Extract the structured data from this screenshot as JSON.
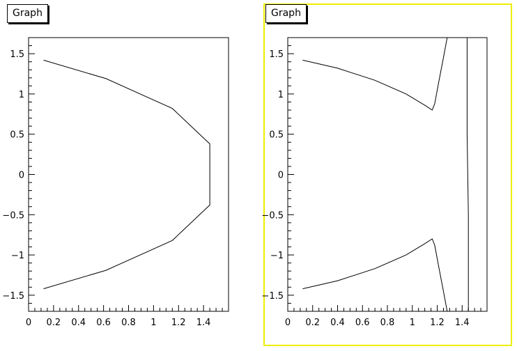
{
  "chart_data": [
    {
      "type": "line",
      "title": "Graph",
      "xlabel": "",
      "ylabel": "",
      "xlim": [
        0,
        1.6
      ],
      "ylim": [
        -1.7,
        1.7
      ],
      "x_ticks": [
        "0",
        "0.2",
        "0.4",
        "0.6",
        "0.8",
        "1",
        "1.2",
        "1.4"
      ],
      "y_ticks": [
        "-1.5",
        "-1",
        "-0.5",
        "0",
        "0.5",
        "1",
        "1.5"
      ],
      "grid": false,
      "selected": false,
      "series": [
        {
          "x": [
            0.12,
            0.62,
            1.15,
            1.45,
            1.45,
            1.15,
            0.62,
            0.12
          ],
          "y": [
            1.42,
            1.19,
            0.82,
            0.38,
            -0.38,
            -0.82,
            -1.19,
            -1.42
          ]
        }
      ]
    },
    {
      "type": "line",
      "title": "Graph",
      "xlabel": "",
      "ylabel": "",
      "xlim": [
        0,
        1.6
      ],
      "ylim": [
        -1.7,
        1.7
      ],
      "x_ticks": [
        "0",
        "0.2",
        "0.4",
        "0.6",
        "0.8",
        "1",
        "1.2",
        "1.4"
      ],
      "y_ticks": [
        "-1.5",
        "-1",
        "-0.5",
        "0",
        "0.5",
        "1",
        "1.5"
      ],
      "grid": false,
      "selected": true,
      "series": [
        {
          "x": [
            0.12,
            0.4,
            0.7,
            0.95,
            1.1,
            1.16,
            1.18,
            1.21,
            1.25,
            1.28
          ],
          "y": [
            1.42,
            1.32,
            1.17,
            1.0,
            0.86,
            0.8,
            0.88,
            1.13,
            1.45,
            1.7
          ]
        },
        {
          "x": [
            0.12,
            0.4,
            0.7,
            0.95,
            1.1,
            1.16,
            1.18,
            1.21,
            1.25,
            1.28
          ],
          "y": [
            -1.42,
            -1.32,
            -1.17,
            -1.0,
            -0.86,
            -0.8,
            -0.88,
            -1.13,
            -1.45,
            -1.7
          ]
        },
        {
          "x": [
            1.44,
            1.44,
            1.45,
            1.45
          ],
          "y": [
            1.7,
            0.5,
            -0.5,
            -1.7
          ]
        }
      ]
    }
  ]
}
